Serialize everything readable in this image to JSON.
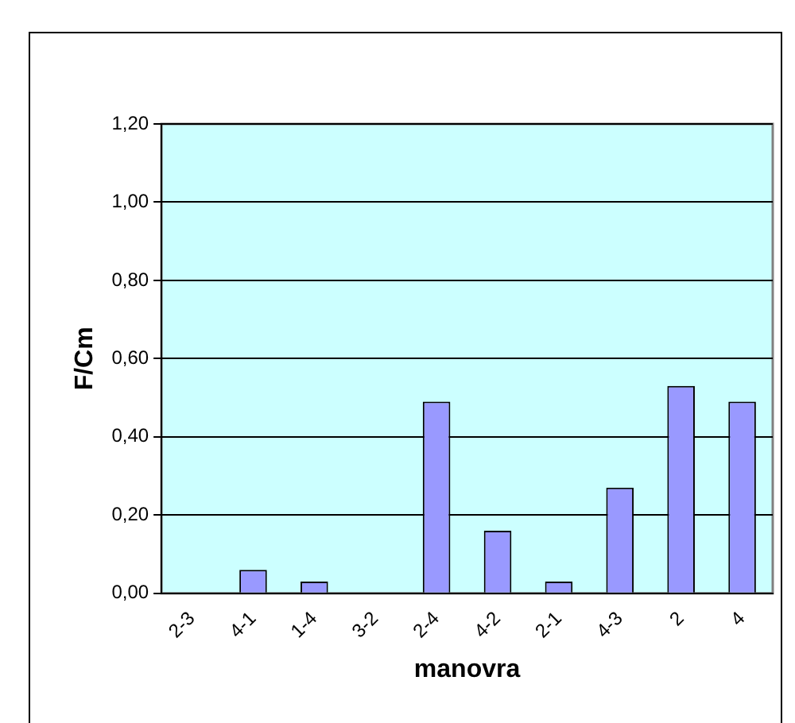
{
  "chart_data": {
    "type": "bar",
    "xlabel": "manovra",
    "ylabel": "F/Cm",
    "categories": [
      "2-3",
      "4-1",
      "1-4",
      "3-2",
      "2-4",
      "4-2",
      "2-1",
      "4-3",
      "2",
      "4"
    ],
    "values": [
      0,
      0.06,
      0.03,
      0,
      0.49,
      0.16,
      0.03,
      0.27,
      0.53,
      0.49
    ],
    "color": "#9999ff",
    "ylim": [
      0,
      1.2
    ],
    "yticks": [
      {
        "value": 0,
        "label": "0,00"
      },
      {
        "value": 0.2,
        "label": "0,20"
      },
      {
        "value": 0.4,
        "label": "0,40"
      },
      {
        "value": 0.6,
        "label": "0,60"
      },
      {
        "value": 0.8,
        "label": "0,80"
      },
      {
        "value": 1,
        "label": "1,00"
      },
      {
        "value": 1.2,
        "label": "1,20"
      }
    ],
    "grid": "y",
    "legend": false
  }
}
